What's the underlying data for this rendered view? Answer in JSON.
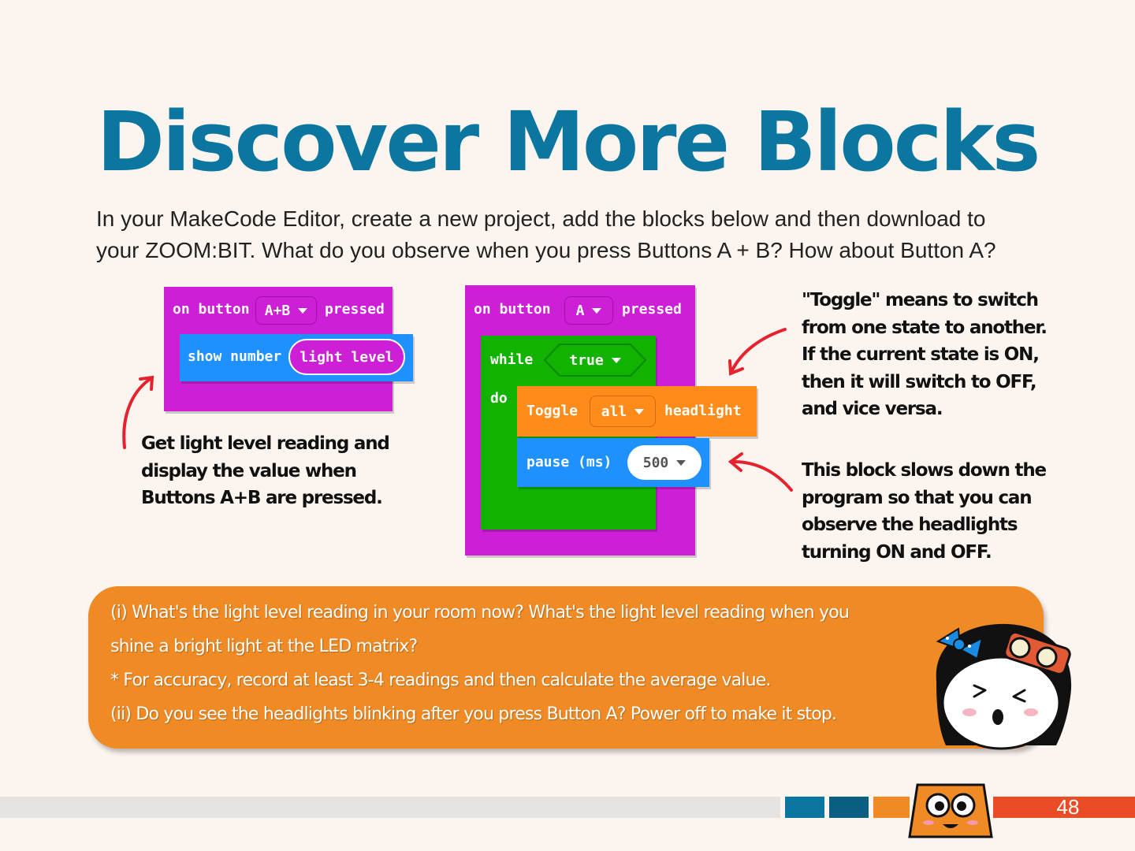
{
  "page": {
    "title": "Discover More Blocks",
    "intro_line1": "In your MakeCode Editor, create a new project, add the blocks below and then download to",
    "intro_line2": "your ZOOM:BIT. What do you observe when you press Buttons A + B? How about Button A?",
    "page_number": "48"
  },
  "block1": {
    "event_label": "on button",
    "button_value": "A+B",
    "event_suffix": "pressed",
    "action_label": "show number",
    "sensor_label": "light level"
  },
  "block2": {
    "event_label": "on button",
    "button_value": "A",
    "event_suffix": "pressed",
    "loop_label": "while",
    "condition_value": "true",
    "do_label": "do",
    "toggle_label": "Toggle",
    "toggle_target": "all",
    "toggle_object": "headlight",
    "pause_label": "pause (ms)",
    "pause_value": "500"
  },
  "notes": {
    "left": [
      "Get light level reading and",
      "display the value when",
      "Buttons A+B are pressed."
    ],
    "toggle": [
      "\"Toggle\" means to switch",
      "from one state to another.",
      "If the current state is ON,",
      "then it will switch to OFF,",
      "and vice versa."
    ],
    "pause": [
      "This block slows down the",
      "program so that you can",
      "observe the headlights",
      "turning ON and OFF."
    ]
  },
  "questions": {
    "lines": [
      " (i) What's the light level reading in your room now? What's the light level reading when you",
      "shine a bright light at the LED matrix?",
      "* For accuracy, record at least 3-4 readings and then calculate the average value.",
      "(ii) Do you see the headlights blinking after you press Button A? Power off to make it stop."
    ]
  },
  "colors": {
    "title": "#0b77a0",
    "event_block": "#cc1fd6",
    "basic_block": "#1e91ff",
    "loop_block": "#11b200",
    "zoombit_block": "#ff8c1a",
    "question_box": "#ef8a24",
    "arrow": "#e5232e"
  }
}
